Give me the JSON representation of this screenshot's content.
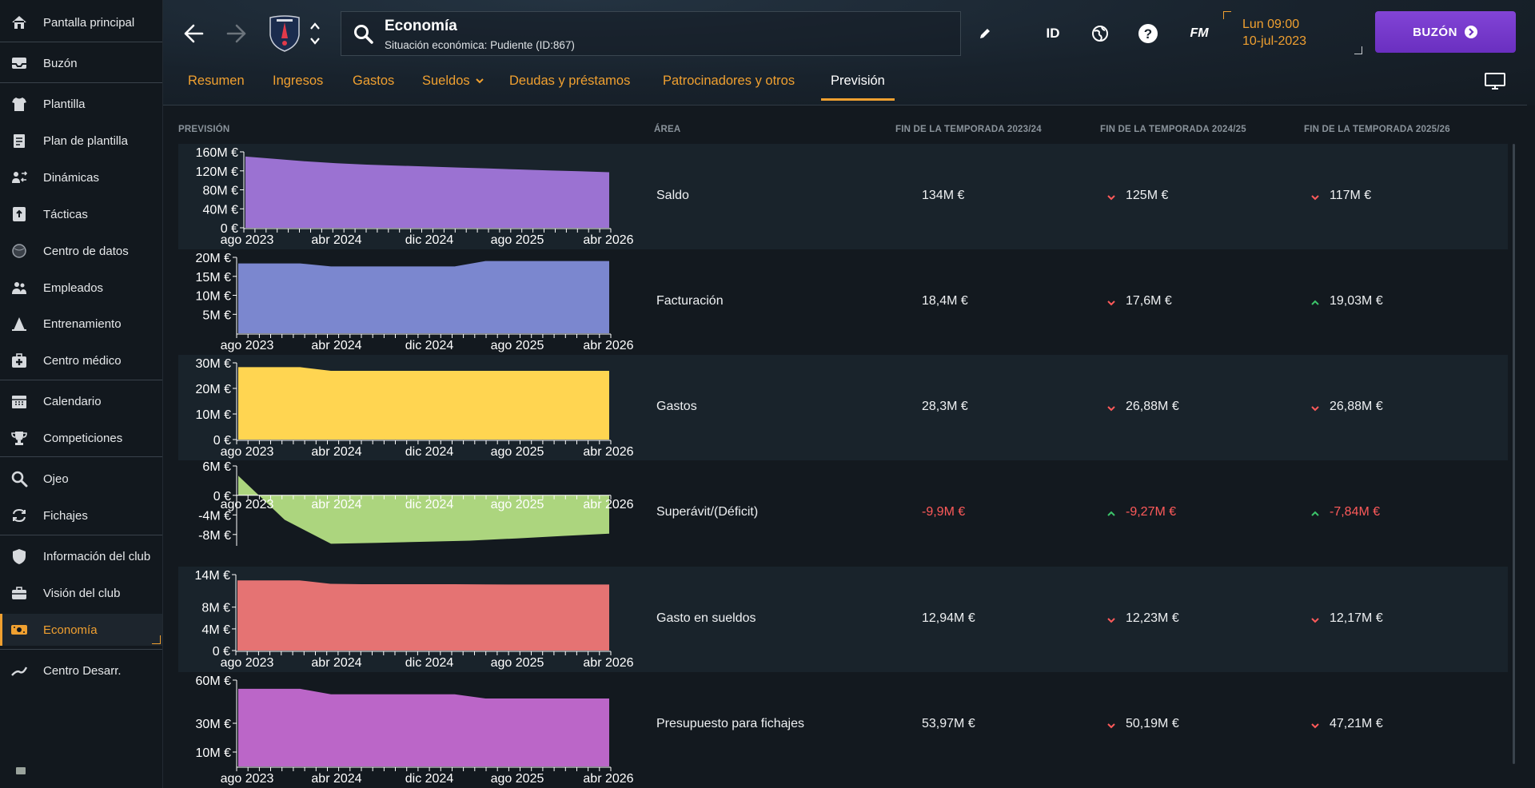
{
  "sidebar": {
    "items": [
      {
        "label": "Pantalla principal",
        "icon": "home-icon"
      },
      {
        "label": "Buzón",
        "icon": "inbox-icon"
      },
      {
        "label": "Plantilla",
        "icon": "shirt-icon"
      },
      {
        "label": "Plan de plantilla",
        "icon": "clipboard-icon"
      },
      {
        "label": "Dinámicas",
        "icon": "people-arrows-icon"
      },
      {
        "label": "Tácticas",
        "icon": "tactics-board-icon"
      },
      {
        "label": "Centro de datos",
        "icon": "data-sphere-icon"
      },
      {
        "label": "Empleados",
        "icon": "staff-icon"
      },
      {
        "label": "Entrenamiento",
        "icon": "training-cone-icon"
      },
      {
        "label": "Centro médico",
        "icon": "medical-kit-icon"
      },
      {
        "label": "Calendario",
        "icon": "calendar-icon"
      },
      {
        "label": "Competiciones",
        "icon": "trophy-icon"
      },
      {
        "label": "Ojeo",
        "icon": "magnifier-icon"
      },
      {
        "label": "Fichajes",
        "icon": "transfer-arrows-icon"
      },
      {
        "label": "Información del club",
        "icon": "shield-icon"
      },
      {
        "label": "Visión del club",
        "icon": "briefcase-icon"
      },
      {
        "label": "Economía",
        "icon": "money-icon"
      },
      {
        "label": "Centro Desarr.",
        "icon": "growth-line-icon"
      }
    ],
    "active": "Economía"
  },
  "header": {
    "title": "Economía",
    "subtitle": "Situación económica: Pudiente (ID:867)",
    "id_label": "ID",
    "fm_label": "FM",
    "time": "Lun 09:00",
    "date": "10-jul-2023",
    "inbox_label": "BUZÓN"
  },
  "tabs": [
    {
      "label": "Resumen"
    },
    {
      "label": "Ingresos"
    },
    {
      "label": "Gastos"
    },
    {
      "label": "Sueldos",
      "dropdown": true
    },
    {
      "label": "Deudas y préstamos"
    },
    {
      "label": "Patrocinadores y otros"
    },
    {
      "label": "Previsión",
      "active": true
    }
  ],
  "table": {
    "columns": [
      "PREVISIÓN",
      "ÁREA",
      "FIN DE LA TEMPORADA 2023/24",
      "FIN DE LA TEMPORADA 2024/25",
      "FIN DE LA TEMPORADA 2025/26"
    ],
    "rows": [
      {
        "area": "Saldo",
        "v1": "134M €",
        "v2": "125M €",
        "t2": "down",
        "v3": "117M €",
        "t3": "down",
        "negative": false
      },
      {
        "area": "Facturación",
        "v1": "18,4M €",
        "v2": "17,6M €",
        "t2": "down",
        "v3": "19,03M €",
        "t3": "up",
        "negative": false
      },
      {
        "area": "Gastos",
        "v1": "28,3M €",
        "v2": "26,88M €",
        "t2": "down",
        "v3": "26,88M €",
        "t3": "down",
        "negative": false
      },
      {
        "area": "Superávit/(Déficit)",
        "v1": "-9,9M €",
        "v2": "-9,27M €",
        "t2": "up",
        "v3": "-7,84M €",
        "t3": "up",
        "negative": true
      },
      {
        "area": "Gasto en sueldos",
        "v1": "12,94M €",
        "v2": "12,23M €",
        "t2": "down",
        "v3": "12,17M €",
        "t3": "down",
        "negative": false
      },
      {
        "area": "Presupuesto para fichajes",
        "v1": "53,97M €",
        "v2": "50,19M €",
        "t2": "down",
        "v3": "47,21M €",
        "t3": "down",
        "negative": false
      }
    ]
  },
  "colors": {
    "accent": "#f0a030",
    "positive": "#3cc46a",
    "negative": "#ff5a5a",
    "inbox": "#7a3ad0"
  },
  "chart_data": [
    {
      "type": "area",
      "series": [
        {
          "values": [
            150,
            145,
            140,
            136,
            133,
            131,
            129,
            127,
            125,
            123,
            121,
            119,
            117
          ]
        }
      ],
      "x": [
        0,
        1,
        2,
        3,
        4,
        5,
        6,
        7,
        8,
        9,
        10,
        11,
        12
      ],
      "x_ticks": [
        "ago 2023",
        "abr 2024",
        "dic 2024",
        "ago 2025",
        "abr 2026"
      ],
      "y_ticks": [
        "160M €",
        "120M €",
        "80M €",
        "40M €",
        "0 €"
      ],
      "ylim": [
        0,
        160
      ],
      "color": "#9b72d2"
    },
    {
      "type": "area",
      "series": [
        {
          "values": [
            18.4,
            18.4,
            18.4,
            17.6,
            17.6,
            17.6,
            17.6,
            17.6,
            19.03,
            19.03,
            19.03,
            19.03,
            19.03
          ]
        }
      ],
      "x": [
        0,
        1,
        2,
        3,
        4,
        5,
        6,
        7,
        8,
        9,
        10,
        11,
        12
      ],
      "x_ticks": [
        "ago 2023",
        "abr 2024",
        "dic 2024",
        "ago 2025",
        "abr 2026"
      ],
      "y_ticks": [
        "20M €",
        "15M €",
        "10M €",
        "5M €"
      ],
      "ylim": [
        0,
        20
      ],
      "color": "#7b87cf"
    },
    {
      "type": "area",
      "series": [
        {
          "values": [
            28.3,
            28.3,
            28.3,
            26.88,
            26.88,
            26.88,
            26.88,
            26.88,
            26.88,
            26.88,
            26.88,
            26.88,
            26.88
          ]
        }
      ],
      "x": [
        0,
        1,
        2,
        3,
        4,
        5,
        6,
        7,
        8,
        9,
        10,
        11,
        12
      ],
      "x_ticks": [
        "ago 2023",
        "abr 2024",
        "dic 2024",
        "ago 2025",
        "abr 2026"
      ],
      "y_ticks": [
        "30M €",
        "20M €",
        "10M €",
        "0 €"
      ],
      "ylim": [
        0,
        30
      ],
      "color": "#ffd551"
    },
    {
      "type": "area",
      "series": [
        {
          "values": [
            4,
            -5,
            -9.9,
            -9.7,
            -9.5,
            -9.27,
            -8.8,
            -8.3,
            -7.84
          ]
        }
      ],
      "x": [
        0,
        1.5,
        3,
        4.5,
        6,
        7.5,
        9,
        10.5,
        12
      ],
      "x_ticks": [
        "ago 2023",
        "abr 2024",
        "dic 2024",
        "ago 2025",
        "abr 2026"
      ],
      "y_ticks": [
        "6M €",
        "0 €",
        "-4M €",
        "-8M €"
      ],
      "ylim": [
        -10,
        6
      ],
      "color": "#acd57e"
    },
    {
      "type": "area",
      "series": [
        {
          "values": [
            12.94,
            12.94,
            12.94,
            12.3,
            12.23,
            12.23,
            12.23,
            12.23,
            12.2,
            12.17,
            12.17,
            12.17,
            12.17
          ]
        }
      ],
      "x": [
        0,
        1,
        2,
        3,
        4,
        5,
        6,
        7,
        8,
        9,
        10,
        11,
        12
      ],
      "x_ticks": [
        "ago 2023",
        "abr 2024",
        "dic 2024",
        "ago 2025",
        "abr 2026"
      ],
      "y_ticks": [
        "14M €",
        "8M €",
        "4M €",
        "0 €"
      ],
      "ylim": [
        0,
        14
      ],
      "color": "#e57373"
    },
    {
      "type": "area",
      "series": [
        {
          "values": [
            53.97,
            53.97,
            53.97,
            50.19,
            50.19,
            50.19,
            50.19,
            50.19,
            47.21,
            47.21,
            47.21,
            47.21,
            47.21
          ]
        }
      ],
      "x": [
        0,
        1,
        2,
        3,
        4,
        5,
        6,
        7,
        8,
        9,
        10,
        11,
        12
      ],
      "x_ticks": [
        "ago 2023",
        "abr 2024",
        "dic 2024",
        "ago 2025",
        "abr 2026"
      ],
      "y_ticks": [
        "60M €",
        "30M €",
        "10M €"
      ],
      "ylim": [
        0,
        60
      ],
      "color": "#bb66c8"
    }
  ]
}
